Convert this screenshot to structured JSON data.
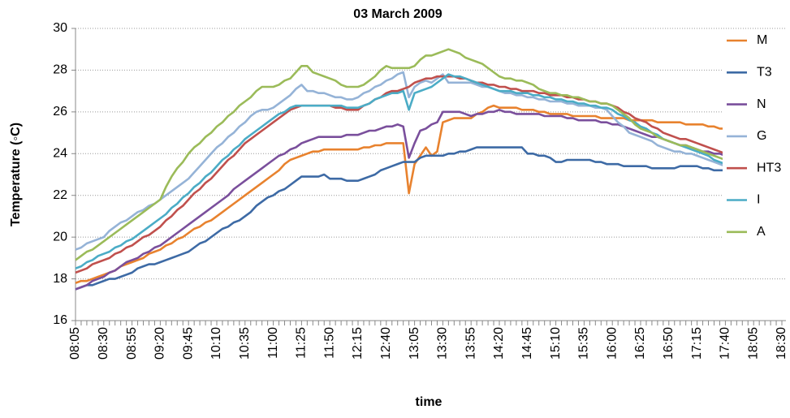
{
  "chart_data": {
    "type": "line",
    "title": "03 March 2009",
    "x_label": "time",
    "y_label": "Temperature (◦C)",
    "categories": [
      "08:05",
      null,
      null,
      null,
      null,
      "08:30",
      null,
      null,
      null,
      null,
      "08:55",
      null,
      null,
      null,
      null,
      "09:20",
      null,
      null,
      null,
      null,
      "09:45",
      null,
      null,
      null,
      null,
      "10:10",
      null,
      null,
      null,
      null,
      "10:35",
      null,
      null,
      null,
      null,
      "11:00",
      null,
      null,
      null,
      null,
      "11:25",
      null,
      null,
      null,
      null,
      "11:50",
      null,
      null,
      null,
      null,
      "12:15",
      null,
      null,
      null,
      null,
      "12:40",
      null,
      null,
      null,
      null,
      "13:05",
      null,
      null,
      null,
      null,
      "13:30",
      null,
      null,
      null,
      null,
      "13:55",
      null,
      null,
      null,
      null,
      "14:20",
      null,
      null,
      null,
      null,
      "14:45",
      null,
      null,
      null,
      null,
      "15:10",
      null,
      null,
      null,
      null,
      "15:35",
      null,
      null,
      null,
      null,
      "16:00",
      null,
      null,
      null,
      null,
      "16:25",
      null,
      null,
      null,
      null,
      "16:50",
      null,
      null,
      null,
      null,
      "17:15",
      null,
      null,
      null,
      null,
      "17:40",
      null,
      null,
      null,
      null,
      "18:05",
      null,
      null,
      null,
      null,
      "18:30"
    ],
    "ylim": [
      16,
      30
    ],
    "yticks": [
      16,
      18,
      20,
      22,
      24,
      26,
      28,
      30
    ],
    "grid": true,
    "legend": "right",
    "series": [
      {
        "name": "M",
        "color": "#e8822e",
        "values": [
          17.8,
          17.9,
          17.9,
          18.0,
          18.1,
          18.2,
          18.3,
          18.4,
          18.6,
          18.7,
          18.8,
          18.9,
          19.0,
          19.2,
          19.3,
          19.4,
          19.6,
          19.7,
          19.9,
          20.0,
          20.2,
          20.4,
          20.5,
          20.7,
          20.8,
          21.0,
          21.2,
          21.4,
          21.6,
          21.8,
          22.0,
          22.2,
          22.4,
          22.6,
          22.8,
          23.0,
          23.2,
          23.5,
          23.7,
          23.8,
          23.9,
          24.0,
          24.1,
          24.1,
          24.2,
          24.2,
          24.2,
          24.2,
          24.2,
          24.2,
          24.2,
          24.3,
          24.3,
          24.4,
          24.4,
          24.5,
          24.5,
          24.5,
          24.5,
          22.1,
          23.5,
          23.9,
          24.3,
          23.9,
          24.1,
          25.5,
          25.6,
          25.7,
          25.7,
          25.7,
          25.7,
          25.9,
          26.0,
          26.2,
          26.3,
          26.2,
          26.2,
          26.2,
          26.2,
          26.1,
          26.1,
          26.1,
          26.0,
          26.0,
          25.9,
          25.9,
          25.9,
          25.9,
          25.8,
          25.8,
          25.8,
          25.8,
          25.8,
          25.7,
          25.7,
          25.7,
          25.7,
          25.7,
          25.6,
          25.6,
          25.6,
          25.6,
          25.6,
          25.5,
          25.5,
          25.5,
          25.5,
          25.5,
          25.4,
          25.4,
          25.4,
          25.4,
          25.3,
          25.3,
          25.2,
          25.2,
          null,
          null,
          null,
          null,
          null,
          null,
          null,
          null,
          null,
          null
        ]
      },
      {
        "name": "T3",
        "color": "#3d6aa5",
        "values": [
          17.5,
          17.6,
          17.7,
          17.7,
          17.8,
          17.9,
          18.0,
          18.0,
          18.1,
          18.2,
          18.3,
          18.5,
          18.6,
          18.7,
          18.7,
          18.8,
          18.9,
          19.0,
          19.1,
          19.2,
          19.3,
          19.5,
          19.7,
          19.8,
          20.0,
          20.2,
          20.4,
          20.5,
          20.7,
          20.8,
          21.0,
          21.2,
          21.5,
          21.7,
          21.9,
          22.0,
          22.2,
          22.3,
          22.5,
          22.7,
          22.9,
          22.9,
          22.9,
          22.9,
          23.0,
          22.8,
          22.8,
          22.8,
          22.7,
          22.7,
          22.7,
          22.8,
          22.9,
          23.0,
          23.2,
          23.3,
          23.4,
          23.5,
          23.6,
          23.6,
          23.6,
          23.8,
          23.9,
          23.9,
          23.9,
          23.9,
          24.0,
          24.0,
          24.1,
          24.1,
          24.2,
          24.3,
          24.3,
          24.3,
          24.3,
          24.3,
          24.3,
          24.3,
          24.3,
          24.3,
          24.0,
          24.0,
          23.9,
          23.9,
          23.8,
          23.6,
          23.6,
          23.7,
          23.7,
          23.7,
          23.7,
          23.7,
          23.6,
          23.6,
          23.5,
          23.5,
          23.5,
          23.4,
          23.4,
          23.4,
          23.4,
          23.4,
          23.3,
          23.3,
          23.3,
          23.3,
          23.3,
          23.4,
          23.4,
          23.4,
          23.4,
          23.3,
          23.3,
          23.2,
          23.2,
          23.2,
          null,
          null,
          null,
          null,
          null,
          null,
          null,
          null,
          null,
          null
        ]
      },
      {
        "name": "N",
        "color": "#7a4f9c",
        "values": [
          17.5,
          17.6,
          17.7,
          17.9,
          18.0,
          18.1,
          18.3,
          18.4,
          18.6,
          18.8,
          18.9,
          19.0,
          19.2,
          19.3,
          19.5,
          19.6,
          19.8,
          20.0,
          20.2,
          20.4,
          20.6,
          20.8,
          21.0,
          21.2,
          21.4,
          21.6,
          21.8,
          22.0,
          22.3,
          22.5,
          22.7,
          22.9,
          23.1,
          23.3,
          23.5,
          23.7,
          23.9,
          24.0,
          24.2,
          24.3,
          24.5,
          24.6,
          24.7,
          24.8,
          24.8,
          24.8,
          24.8,
          24.8,
          24.9,
          24.9,
          24.9,
          25.0,
          25.1,
          25.1,
          25.2,
          25.3,
          25.3,
          25.4,
          25.3,
          23.8,
          24.5,
          25.1,
          25.2,
          25.4,
          25.5,
          26.0,
          26.0,
          26.0,
          26.0,
          25.9,
          25.8,
          25.9,
          25.9,
          26.0,
          26.0,
          26.1,
          26.0,
          26.0,
          25.9,
          25.9,
          25.9,
          25.9,
          25.9,
          25.8,
          25.8,
          25.8,
          25.8,
          25.7,
          25.7,
          25.6,
          25.6,
          25.6,
          25.6,
          25.5,
          25.5,
          25.4,
          25.4,
          25.3,
          25.2,
          25.1,
          25.0,
          24.9,
          24.8,
          24.8,
          24.7,
          24.6,
          24.5,
          24.4,
          24.4,
          24.3,
          24.2,
          24.1,
          24.1,
          24.0,
          24.0,
          23.9,
          null,
          null,
          null,
          null,
          null,
          null,
          null,
          null,
          null,
          null
        ]
      },
      {
        "name": "G",
        "color": "#95b3d7",
        "values": [
          19.4,
          19.5,
          19.7,
          19.8,
          19.9,
          20.0,
          20.3,
          20.5,
          20.7,
          20.8,
          21.0,
          21.2,
          21.3,
          21.5,
          21.6,
          21.8,
          22.0,
          22.2,
          22.4,
          22.6,
          22.8,
          23.1,
          23.4,
          23.7,
          24.0,
          24.3,
          24.5,
          24.8,
          25.0,
          25.3,
          25.5,
          25.8,
          26.0,
          26.1,
          26.1,
          26.2,
          26.4,
          26.6,
          26.8,
          27.1,
          27.3,
          27.0,
          27.0,
          26.9,
          26.9,
          26.8,
          26.7,
          26.7,
          26.6,
          26.6,
          26.7,
          26.9,
          27.0,
          27.2,
          27.3,
          27.5,
          27.6,
          27.8,
          27.9,
          26.7,
          27.2,
          27.4,
          27.5,
          27.4,
          27.6,
          27.8,
          27.4,
          27.4,
          27.4,
          27.4,
          27.4,
          27.3,
          27.2,
          27.2,
          27.1,
          27.0,
          26.9,
          26.9,
          26.8,
          26.8,
          26.7,
          26.7,
          26.6,
          26.6,
          26.5,
          26.5,
          26.5,
          26.4,
          26.4,
          26.3,
          26.3,
          26.3,
          26.2,
          26.2,
          26.1,
          25.8,
          25.5,
          25.3,
          25.0,
          24.9,
          24.8,
          24.7,
          24.6,
          24.4,
          24.3,
          24.2,
          24.1,
          24.1,
          24.0,
          24.0,
          23.9,
          23.8,
          23.7,
          23.6,
          23.5,
          23.4,
          null,
          null,
          null,
          null,
          null,
          null,
          null,
          null,
          null,
          null
        ]
      },
      {
        "name": "HT3",
        "color": "#c0504d",
        "values": [
          18.3,
          18.4,
          18.5,
          18.7,
          18.8,
          18.9,
          19.0,
          19.2,
          19.3,
          19.5,
          19.6,
          19.8,
          20.0,
          20.1,
          20.3,
          20.5,
          20.8,
          21.0,
          21.3,
          21.5,
          21.8,
          22.1,
          22.3,
          22.6,
          22.8,
          23.1,
          23.4,
          23.7,
          23.9,
          24.2,
          24.5,
          24.7,
          24.9,
          25.1,
          25.3,
          25.5,
          25.7,
          25.9,
          26.1,
          26.2,
          26.3,
          26.3,
          26.3,
          26.3,
          26.3,
          26.3,
          26.2,
          26.2,
          26.1,
          26.1,
          26.1,
          26.3,
          26.4,
          26.6,
          26.7,
          26.9,
          27.0,
          27.0,
          27.1,
          27.2,
          27.4,
          27.5,
          27.6,
          27.6,
          27.7,
          27.7,
          27.7,
          27.7,
          27.6,
          27.6,
          27.5,
          27.4,
          27.4,
          27.3,
          27.3,
          27.2,
          27.2,
          27.1,
          27.1,
          27.0,
          27.0,
          27.0,
          26.9,
          26.9,
          26.8,
          26.8,
          26.8,
          26.7,
          26.7,
          26.6,
          26.6,
          26.5,
          26.5,
          26.4,
          26.4,
          26.3,
          26.2,
          26.0,
          25.9,
          25.7,
          25.6,
          25.5,
          25.3,
          25.2,
          25.0,
          24.9,
          24.8,
          24.7,
          24.7,
          24.6,
          24.5,
          24.4,
          24.3,
          24.2,
          24.1,
          24.0,
          null,
          null,
          null,
          null,
          null,
          null,
          null,
          null,
          null,
          null
        ]
      },
      {
        "name": "I",
        "color": "#4bacc6",
        "values": [
          18.5,
          18.6,
          18.8,
          18.9,
          19.1,
          19.2,
          19.3,
          19.5,
          19.6,
          19.8,
          19.9,
          20.1,
          20.3,
          20.5,
          20.7,
          20.9,
          21.1,
          21.4,
          21.6,
          21.9,
          22.1,
          22.4,
          22.6,
          22.9,
          23.1,
          23.4,
          23.7,
          23.9,
          24.2,
          24.4,
          24.7,
          24.9,
          25.1,
          25.3,
          25.5,
          25.7,
          25.9,
          26.0,
          26.2,
          26.3,
          26.3,
          26.3,
          26.3,
          26.3,
          26.3,
          26.3,
          26.3,
          26.3,
          26.2,
          26.2,
          26.2,
          26.3,
          26.4,
          26.6,
          26.7,
          26.8,
          26.9,
          26.9,
          27.0,
          26.1,
          26.9,
          27.0,
          27.1,
          27.2,
          27.4,
          27.6,
          27.8,
          27.7,
          27.7,
          27.6,
          27.5,
          27.4,
          27.3,
          27.2,
          27.1,
          27.0,
          27.0,
          27.0,
          26.9,
          26.9,
          26.9,
          26.8,
          26.8,
          26.7,
          26.7,
          26.6,
          26.6,
          26.5,
          26.5,
          26.4,
          26.4,
          26.3,
          26.3,
          26.2,
          26.2,
          26.1,
          25.9,
          25.8,
          25.6,
          25.5,
          25.3,
          25.2,
          25.0,
          24.9,
          24.7,
          24.6,
          24.5,
          24.4,
          24.3,
          24.2,
          24.1,
          24.0,
          23.9,
          23.7,
          23.6,
          23.5,
          null,
          null,
          null,
          null,
          null,
          null,
          null,
          null,
          null,
          null
        ]
      },
      {
        "name": "A",
        "color": "#9bbb59",
        "values": [
          18.9,
          19.1,
          19.3,
          19.4,
          19.6,
          19.8,
          20.0,
          20.2,
          20.4,
          20.6,
          20.8,
          21.0,
          21.2,
          21.4,
          21.6,
          21.8,
          22.4,
          22.9,
          23.3,
          23.6,
          24.0,
          24.3,
          24.5,
          24.8,
          25.0,
          25.3,
          25.5,
          25.8,
          26.0,
          26.3,
          26.5,
          26.7,
          27.0,
          27.2,
          27.2,
          27.2,
          27.3,
          27.5,
          27.6,
          27.9,
          28.2,
          28.2,
          27.9,
          27.8,
          27.7,
          27.6,
          27.5,
          27.3,
          27.2,
          27.2,
          27.2,
          27.3,
          27.5,
          27.7,
          28.0,
          28.2,
          28.1,
          28.1,
          28.1,
          28.1,
          28.2,
          28.5,
          28.7,
          28.7,
          28.8,
          28.9,
          29.0,
          28.9,
          28.8,
          28.6,
          28.5,
          28.4,
          28.3,
          28.1,
          27.9,
          27.7,
          27.6,
          27.6,
          27.5,
          27.5,
          27.4,
          27.3,
          27.1,
          27.0,
          26.9,
          26.9,
          26.8,
          26.8,
          26.7,
          26.7,
          26.6,
          26.5,
          26.5,
          26.4,
          26.4,
          26.3,
          26.1,
          25.9,
          25.7,
          25.4,
          25.2,
          25.1,
          25.0,
          24.8,
          24.7,
          24.6,
          24.5,
          24.4,
          24.4,
          24.3,
          24.2,
          24.1,
          24.0,
          23.9,
          23.8,
          23.7,
          null,
          null,
          null,
          null,
          null,
          null,
          null,
          null,
          null,
          null
        ]
      }
    ]
  }
}
